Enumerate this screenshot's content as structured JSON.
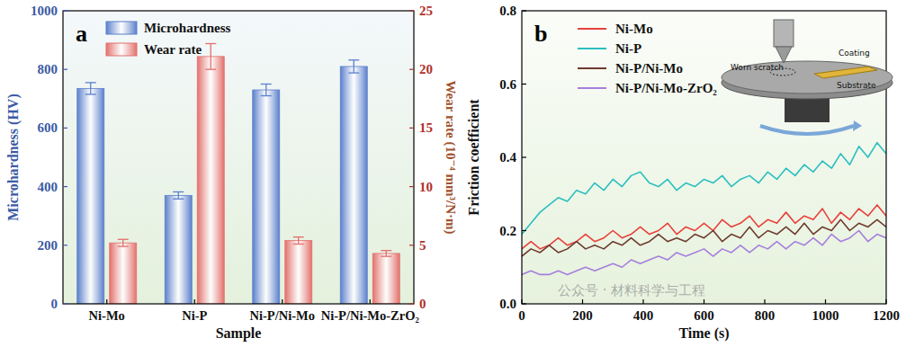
{
  "chart_data": [
    {
      "type": "bar",
      "title": "a",
      "x_label": "Sample",
      "y_label": "Microhardness (HV)",
      "y2_label": "Wear rate (10⁻⁴ mm³/N·m)",
      "categories": [
        "Ni-Mo",
        "Ni-P",
        "Ni-P/Ni-Mo",
        "Ni-P/Ni-Mo-ZrO₂"
      ],
      "series": [
        {
          "name": "Microhardness",
          "color": "#5b7fcc",
          "values": [
            735,
            370,
            730,
            810
          ],
          "errors": [
            20,
            12,
            20,
            22
          ]
        },
        {
          "name": "Wear rate",
          "color": "#e3706c",
          "axis": "y2",
          "values": [
            5.2,
            21.1,
            5.4,
            4.3
          ],
          "errors": [
            0.3,
            1.1,
            0.3,
            0.25
          ]
        }
      ],
      "ylim": [
        0,
        1000
      ],
      "yticks": [
        0,
        200,
        400,
        600,
        800,
        1000
      ],
      "y2lim": [
        0,
        25
      ],
      "y2ticks": [
        0,
        5,
        10,
        15,
        20,
        25
      ],
      "legend": "upper left",
      "grid": false
    },
    {
      "type": "line",
      "title": "b",
      "x_label": "Time (s)",
      "y_label": "Friction coefficient",
      "x": [
        0,
        30,
        60,
        90,
        120,
        150,
        180,
        210,
        240,
        270,
        300,
        330,
        360,
        390,
        420,
        450,
        480,
        510,
        540,
        570,
        600,
        630,
        660,
        690,
        720,
        750,
        780,
        810,
        840,
        870,
        900,
        930,
        960,
        990,
        1020,
        1050,
        1080,
        1110,
        1140,
        1170,
        1200
      ],
      "series": [
        {
          "name": "Ni-Mo",
          "color": "#e8413b",
          "values": [
            0.15,
            0.17,
            0.15,
            0.16,
            0.18,
            0.16,
            0.17,
            0.19,
            0.17,
            0.18,
            0.2,
            0.18,
            0.19,
            0.21,
            0.19,
            0.2,
            0.22,
            0.19,
            0.21,
            0.2,
            0.22,
            0.2,
            0.23,
            0.21,
            0.22,
            0.24,
            0.21,
            0.23,
            0.22,
            0.25,
            0.22,
            0.24,
            0.23,
            0.26,
            0.22,
            0.25,
            0.23,
            0.26,
            0.24,
            0.27,
            0.24
          ]
        },
        {
          "name": "Ni-P",
          "color": "#2bbfc0",
          "values": [
            0.19,
            0.22,
            0.25,
            0.27,
            0.29,
            0.28,
            0.31,
            0.3,
            0.33,
            0.31,
            0.34,
            0.32,
            0.35,
            0.36,
            0.33,
            0.32,
            0.34,
            0.31,
            0.33,
            0.32,
            0.34,
            0.33,
            0.35,
            0.32,
            0.34,
            0.35,
            0.33,
            0.36,
            0.34,
            0.37,
            0.35,
            0.38,
            0.36,
            0.39,
            0.37,
            0.41,
            0.38,
            0.43,
            0.4,
            0.44,
            0.41
          ]
        },
        {
          "name": "Ni-P/Ni-Mo",
          "color": "#6e3b2e",
          "values": [
            0.13,
            0.15,
            0.14,
            0.16,
            0.14,
            0.15,
            0.17,
            0.15,
            0.16,
            0.15,
            0.17,
            0.16,
            0.18,
            0.16,
            0.17,
            0.19,
            0.17,
            0.18,
            0.17,
            0.19,
            0.18,
            0.2,
            0.17,
            0.19,
            0.18,
            0.21,
            0.18,
            0.2,
            0.19,
            0.21,
            0.19,
            0.22,
            0.19,
            0.21,
            0.2,
            0.23,
            0.2,
            0.22,
            0.21,
            0.23,
            0.21
          ]
        },
        {
          "name": "Ni-P/Ni-Mo-ZrO₂",
          "color": "#a67fdc",
          "values": [
            0.08,
            0.09,
            0.08,
            0.08,
            0.09,
            0.08,
            0.09,
            0.1,
            0.09,
            0.1,
            0.11,
            0.1,
            0.12,
            0.11,
            0.12,
            0.13,
            0.12,
            0.14,
            0.13,
            0.14,
            0.15,
            0.13,
            0.15,
            0.14,
            0.16,
            0.14,
            0.16,
            0.15,
            0.17,
            0.15,
            0.17,
            0.16,
            0.18,
            0.16,
            0.19,
            0.17,
            0.18,
            0.2,
            0.17,
            0.19,
            0.18
          ]
        }
      ],
      "xlim": [
        0,
        1200
      ],
      "xticks": [
        0,
        200,
        400,
        600,
        800,
        1000,
        1200
      ],
      "ylim": [
        0,
        0.8
      ],
      "yticks": [
        {
          "value": 0,
          "label": "0.0"
        },
        0.2,
        0.4,
        0.6,
        0.8
      ],
      "annotations": [
        "Worn scratch",
        "Coating",
        "Substrate",
        "公众号 · 材料科学与工程"
      ],
      "legend": "upper center",
      "grid": false
    }
  ]
}
